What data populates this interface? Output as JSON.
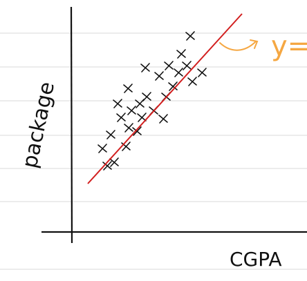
{
  "axes": {
    "y_label": "package",
    "x_label": "CGPA"
  },
  "annotation": "y="
}
